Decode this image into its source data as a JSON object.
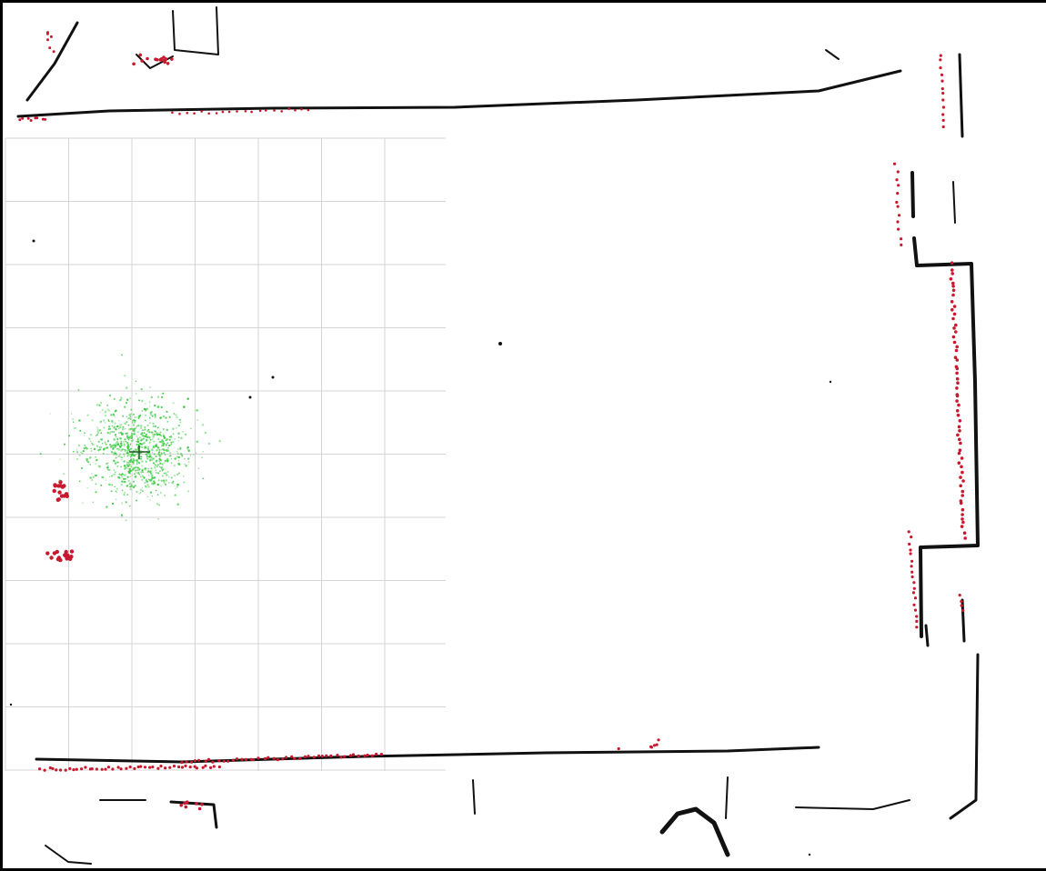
{
  "window": {
    "title": ""
  },
  "colors": {
    "background": "#000000",
    "map_free_space": "#ffffff",
    "grid_line": "#d4d4d4",
    "wall": "#111111",
    "laser_scan": "#c8192e",
    "particle_cloud": "#35c83c",
    "robot_pose": "#1e5a24"
  },
  "layers": [
    {
      "id": "occupancy-map",
      "icon": "map-icon"
    },
    {
      "id": "grid",
      "icon": "grid-icon"
    },
    {
      "id": "laser-scan",
      "icon": "laser-icon"
    },
    {
      "id": "particle-cloud",
      "icon": "particles-icon"
    },
    {
      "id": "robot-pose",
      "icon": "robot-icon"
    }
  ],
  "particle_cloud": {
    "particle_count": 900
  }
}
